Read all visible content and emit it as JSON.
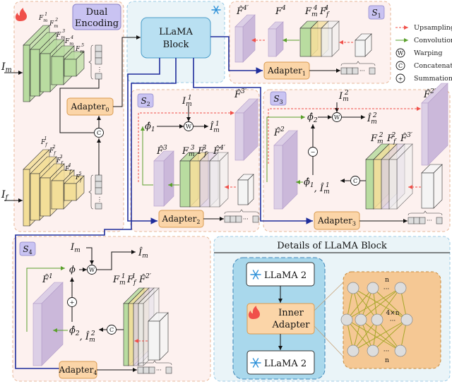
{
  "colors": {
    "panel_fill": "#fdf1ef",
    "panel_border": "#e7b89a",
    "llama_panel_fill": "#eaf4f8",
    "llama_panel_border": "#9ccbe6",
    "llama_block": "#b9e0f2",
    "adapter": "#fbd5a8",
    "adapter_border": "#d99a4f",
    "green": "#b9dca0",
    "yellow": "#f3de98",
    "purple": "#dccfe6",
    "badge": "#c9c3f2",
    "pathway": "#1f2d9c",
    "upsample": "#f0504a",
    "conv": "#5aa02c"
  },
  "dual_encoding": {
    "label_line1": "Dual",
    "label_line2": "Encoding",
    "input_m": {
      "base": "I",
      "sub": "m"
    },
    "input_f": {
      "base": "I",
      "sub": "f"
    },
    "features_m": [
      {
        "base": "F",
        "sub": "m",
        "sup": "1"
      },
      {
        "base": "F",
        "sub": "m",
        "sup": "2"
      },
      {
        "base": "F",
        "sub": "m",
        "sup": "3"
      },
      {
        "base": "F",
        "sub": "m",
        "sup": "4"
      },
      {
        "base": "F",
        "sub": "m",
        "sup": "5"
      }
    ],
    "features_f": [
      {
        "base": "F",
        "sub": "f",
        "sup": "1"
      },
      {
        "base": "F",
        "sub": "f",
        "sup": "2"
      },
      {
        "base": "F",
        "sub": "f",
        "sup": "3"
      },
      {
        "base": "F",
        "sub": "f",
        "sup": "4"
      },
      {
        "base": "F",
        "sub": "f",
        "sup": "5"
      }
    ],
    "adapter": {
      "base": "Adapter",
      "sub": "0"
    },
    "concat": "C",
    "icon": "fire-icon"
  },
  "llama": {
    "line1": "LLaMA",
    "line2": "Block",
    "icon": "snowflake-icon"
  },
  "stages": {
    "s1": {
      "badge": {
        "base": "S",
        "sub": "1"
      },
      "adapter": {
        "base": "Adapter",
        "sub": "1"
      },
      "labels": {
        "fhat": {
          "base": "F̂",
          "sup": "4′"
        },
        "f": {
          "base": "F",
          "sup": "4"
        },
        "fm": {
          "base": "F",
          "sub": "m",
          "sup": "4"
        },
        "ff": {
          "base": "F",
          "sub": "f",
          "sup": "4"
        }
      }
    },
    "s2": {
      "badge": {
        "base": "S",
        "sub": "2"
      },
      "adapter": {
        "base": "Adapter",
        "sub": "2"
      },
      "labels": {
        "im": {
          "base": "I",
          "sub": "m",
          "sup": "1"
        },
        "phi": {
          "base": "ϕ̂",
          "sub": "1"
        },
        "out": {
          "base": "Î",
          "sub": "m",
          "sup": "1"
        },
        "fhatp": {
          "base": "F̂",
          "sup": "3′"
        },
        "fhat": {
          "base": "F̂",
          "sup": "3"
        },
        "fm": {
          "base": "F",
          "sub": "m",
          "sup": "3"
        },
        "ff": {
          "base": "F",
          "sub": "f",
          "sup": "3"
        },
        "fp": {
          "base": "F̂",
          "sup": "4′"
        }
      },
      "warp": "W"
    },
    "s3": {
      "badge": {
        "base": "S",
        "sub": "3"
      },
      "adapter": {
        "base": "Adapter",
        "sub": "3"
      },
      "labels": {
        "im": {
          "base": "I",
          "sub": "m",
          "sup": "2"
        },
        "phi": {
          "base": "ϕ̂",
          "sub": "2"
        },
        "out": {
          "base": "Î",
          "sub": "m",
          "sup": "2"
        },
        "fhatp": {
          "base": "F̂",
          "sup": "2′"
        },
        "fhat": {
          "base": "F̂",
          "sup": "2"
        },
        "prev": {
          "base": "ϕ̂",
          "sub": "1",
          "tail": ", Î",
          "tsub": "m",
          "tsup": "1"
        },
        "fm": {
          "base": "F",
          "sub": "m",
          "sup": "2"
        },
        "ff": {
          "base": "F",
          "sub": "f",
          "sup": "2"
        },
        "fp": {
          "base": "F̂",
          "sup": "3′"
        }
      },
      "warp": "W",
      "concat": "C",
      "minus": "−"
    },
    "s4": {
      "badge": {
        "base": "S",
        "sub": "4"
      },
      "adapter": {
        "base": "Adapter",
        "sub": "4"
      },
      "labels": {
        "im": {
          "base": "I",
          "sub": "m"
        },
        "phi": {
          "base": "ϕ"
        },
        "out": {
          "base": "Î",
          "sub": "m"
        },
        "fhat": {
          "base": "F̂",
          "sup": "1"
        },
        "prev": {
          "base": "ϕ̂",
          "sub": "2",
          "tail": ", Î",
          "tsub": "m",
          "tsup": "2"
        },
        "fm": {
          "base": "F",
          "sub": "m",
          "sup": "1"
        },
        "ff": {
          "base": "F",
          "sub": "f",
          "sup": "1"
        },
        "fp": {
          "base": "F̂",
          "sup": "2′"
        }
      },
      "warp": "W",
      "concat": "C",
      "plus": "+"
    }
  },
  "legend": [
    {
      "icon": "red-dashed-arrow",
      "label": "Upsampling"
    },
    {
      "icon": "green-arrow",
      "label": "Convolution"
    },
    {
      "icon": "W",
      "label": "Warping"
    },
    {
      "icon": "C",
      "label": "Concatenation"
    },
    {
      "icon": "+",
      "label": "Summation"
    }
  ],
  "details": {
    "title": "Details of LLaMA Block",
    "llama2_top": "LLaMA 2",
    "inner_line1": "Inner",
    "inner_line2": "Adapter",
    "llama2_bottom": "LLaMA 2",
    "net_top": "n",
    "net_mid": "4×n",
    "net_bottom": "n",
    "dots": "···"
  }
}
